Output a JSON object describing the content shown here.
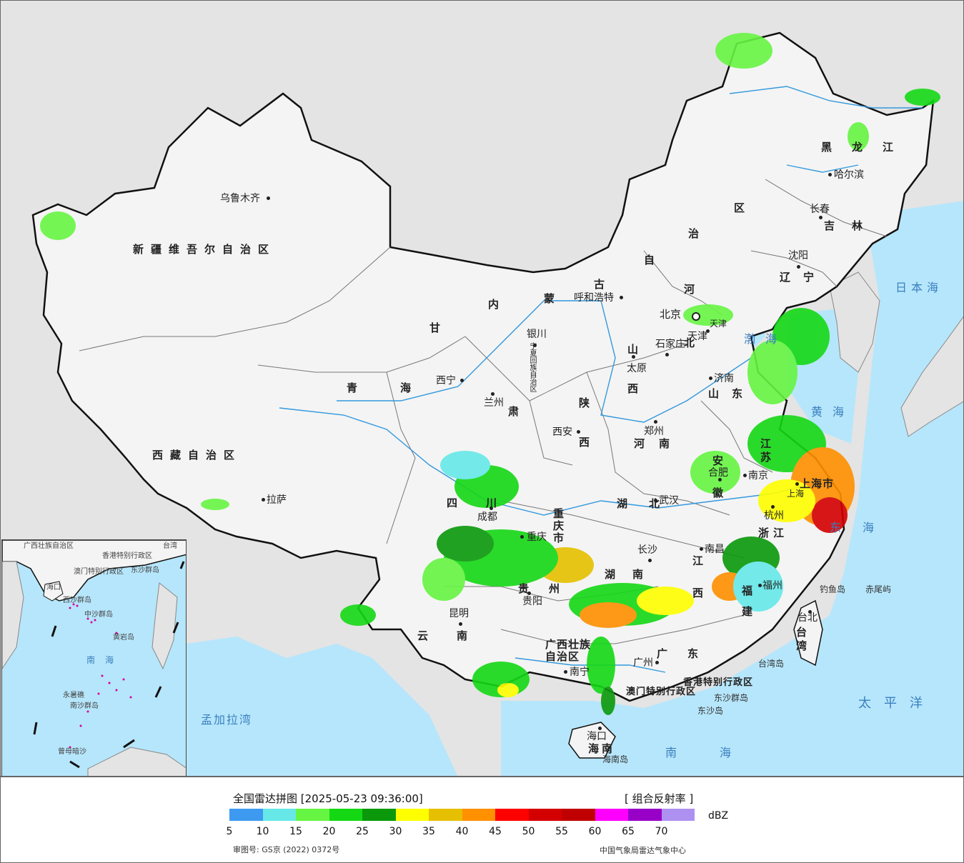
{
  "colors": {
    "ocean": "#b6e6fb",
    "land_china": "#f4f4f4",
    "land_other": "#e4e4e4",
    "border": "#111111",
    "rivers": "#3399dd"
  },
  "map": {
    "regions": {
      "xinjiang": "新疆维吾尔自治区",
      "xizang": "西藏自治区",
      "qinghai": "青海",
      "gansu": "甘",
      "gansu2": "肃",
      "neimenggu": [
        "内",
        "蒙",
        "古",
        "自",
        "治",
        "区"
      ],
      "heilongjiang": "黑龙江",
      "jilin": "吉林",
      "liaoning": "辽宁",
      "hebei": "河北",
      "shanxi": "山西",
      "shaanxi": "陕西",
      "henan": "河南",
      "shandong": "山东",
      "sichuan": "四川",
      "chongqing": "重庆市",
      "hubei": "湖北",
      "hunan": "湖南",
      "guizhou": "贵州",
      "yunnan": "云南",
      "guangxi": "广西壮族自治区",
      "guangdong": "广东",
      "jiangxi": "江西",
      "fujian": "福建",
      "zhejiang": "浙江",
      "anhui": "安徽",
      "jiangsu": "江苏",
      "shanghai": "上海市",
      "taiwan": "台湾",
      "hainan": "海南",
      "ningxia": "宁夏回族自治区",
      "tianjin": "天津",
      "beijing": "北京",
      "hongkong": "香港特别行政区",
      "macau": "澳门特别行政区"
    },
    "cities": [
      {
        "name": "乌鲁木齐"
      },
      {
        "name": "拉萨"
      },
      {
        "name": "西宁"
      },
      {
        "name": "兰州"
      },
      {
        "name": "银川"
      },
      {
        "name": "呼和浩特"
      },
      {
        "name": "北京"
      },
      {
        "name": "天津"
      },
      {
        "name": "石家庄"
      },
      {
        "name": "太原"
      },
      {
        "name": "济南"
      },
      {
        "name": "郑州"
      },
      {
        "name": "西安"
      },
      {
        "name": "成都"
      },
      {
        "name": "重庆"
      },
      {
        "name": "武汉"
      },
      {
        "name": "长沙"
      },
      {
        "name": "南昌"
      },
      {
        "name": "贵阳"
      },
      {
        "name": "昆明"
      },
      {
        "name": "南宁"
      },
      {
        "name": "广州"
      },
      {
        "name": "福州"
      },
      {
        "name": "杭州"
      },
      {
        "name": "南京"
      },
      {
        "name": "合肥"
      },
      {
        "name": "上海"
      },
      {
        "name": "哈尔滨"
      },
      {
        "name": "长春"
      },
      {
        "name": "沈阳"
      },
      {
        "name": "台北"
      },
      {
        "name": "海口"
      }
    ],
    "seas": {
      "japan_sea": "日本海",
      "bohai": "渤海",
      "yellow_sea": "黄海",
      "east_sea": "东海",
      "pacific": "太平洋",
      "south_sea": "南海",
      "bengal": "孟加拉湾"
    },
    "islands": {
      "diaoyu": "钓鱼岛",
      "chiwei": "赤尾屿",
      "taiwan_island": "台湾岛",
      "hainan_island": "海南岛",
      "dongsha": "东沙群岛",
      "dongsha_island": "东沙岛"
    },
    "inset": {
      "labels": [
        "广西壮族自治区",
        "香港特别行政区",
        "澳门特别行政区",
        "东沙群岛",
        "海口",
        "西沙群岛",
        "中沙群岛",
        "黄岩岛",
        "南海",
        "永暑礁",
        "南沙群岛",
        "曾母暗沙",
        "台湾"
      ]
    }
  },
  "legend": {
    "title": "全国雷达拼图 [2025-05-23 09:36:00]",
    "product": "[ 组合反射率 ]",
    "unit": "dBZ",
    "scale_colors": [
      "#3d9af0",
      "#66e8e8",
      "#66f542",
      "#15d815",
      "#0b990b",
      "#ffff00",
      "#e6c000",
      "#ff9000",
      "#ff0000",
      "#d40000",
      "#c00000",
      "#ff00ff",
      "#9800c8",
      "#ae90f0"
    ],
    "ticks": [
      "5",
      "10",
      "15",
      "20",
      "25",
      "30",
      "35",
      "40",
      "45",
      "50",
      "55",
      "60",
      "65",
      "70"
    ],
    "approval": "审图号: GS京 (2022) 0372号",
    "credit": "中国气象局雷达气象中心"
  }
}
